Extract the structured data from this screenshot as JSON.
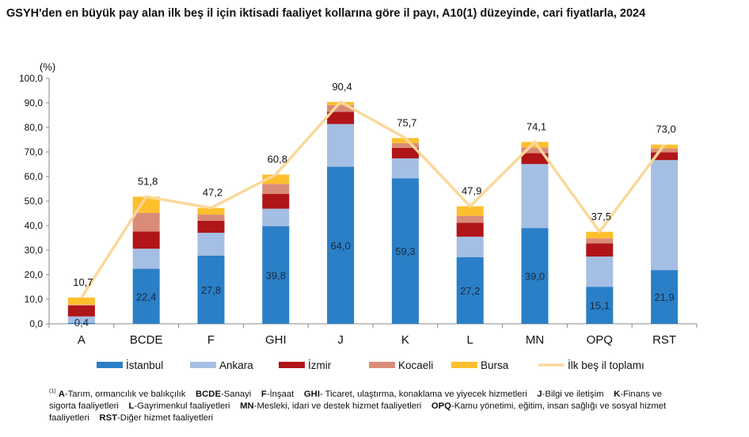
{
  "title": "GSYH'den en büyük pay alan ilk beş il için iktisadi faaliyet kollarına göre il payı, A10(1) düzeyinde, cari fiyatlarla, 2024",
  "chart_data": {
    "type": "bar",
    "stacked": true,
    "ylabel": "(%)",
    "ylim": [
      0,
      100
    ],
    "yticks": [
      "0,0",
      "10,0",
      "20,0",
      "30,0",
      "40,0",
      "50,0",
      "60,0",
      "70,0",
      "80,0",
      "90,0",
      "100,0"
    ],
    "grid": false,
    "legend_position": "bottom",
    "categories": [
      "A",
      "BCDE",
      "F",
      "GHI",
      "J",
      "K",
      "L",
      "MN",
      "OPQ",
      "RST"
    ],
    "series": [
      {
        "name": "İstanbul",
        "color": "#2A7FC6",
        "values": [
          0.4,
          22.4,
          27.8,
          39.8,
          64.0,
          59.3,
          27.2,
          39.0,
          15.1,
          21.9
        ],
        "labels": [
          "0,4",
          "22,4",
          "27,8",
          "39,8",
          "64,0",
          "59,3",
          "27,2",
          "39,0",
          "15,1",
          "21,9"
        ]
      },
      {
        "name": "Ankara",
        "color": "#A5BEE3",
        "values": [
          2.6,
          8.2,
          9.3,
          7.1,
          17.4,
          8.1,
          8.3,
          26.1,
          12.3,
          44.8
        ]
      },
      {
        "name": "İzmir",
        "color": "#B01518",
        "values": [
          4.5,
          7.0,
          4.9,
          6.0,
          5.0,
          4.3,
          5.7,
          4.4,
          5.4,
          3.2
        ]
      },
      {
        "name": "Kocaeli",
        "color": "#D98C78",
        "values": [
          0.3,
          7.6,
          2.5,
          4.1,
          2.7,
          1.9,
          2.8,
          2.3,
          2.0,
          1.6
        ]
      },
      {
        "name": "Bursa",
        "color": "#FDBF2D",
        "values": [
          2.9,
          6.6,
          2.7,
          3.8,
          1.3,
          2.1,
          3.9,
          2.3,
          2.7,
          1.5
        ]
      }
    ],
    "line": {
      "name": "İlk beş il toplamı",
      "color": "#FBD89B",
      "values": [
        10.7,
        51.8,
        47.2,
        60.8,
        90.4,
        75.7,
        47.9,
        74.1,
        37.5,
        73.0
      ],
      "labels": [
        "10,7",
        "51,8",
        "47,2",
        "60,8",
        "90,4",
        "75,7",
        "47,9",
        "74,1",
        "37,5",
        "73,0"
      ]
    }
  },
  "footnote": {
    "marker": "(1)",
    "items": [
      {
        "code": "A",
        "text": "-Tarım, ormancılık ve balıkçılık"
      },
      {
        "code": "BCDE",
        "text": "-Sanayi"
      },
      {
        "code": "F",
        "text": "-İnşaat"
      },
      {
        "code": "GHI",
        "text": "- Ticaret, ulaştırma, konaklama ve yiyecek hizmetleri"
      },
      {
        "code": "J",
        "text": "-Bilgi ve iletişim"
      },
      {
        "code": "K",
        "text": "-Finans ve sigorta faaliyetleri"
      },
      {
        "code": "L",
        "text": "-Gayrimenkul faaliyetleri"
      },
      {
        "code": "MN",
        "text": "-Mesleki, idari ve destek hizmet faaliyetleri"
      },
      {
        "code": "OPQ",
        "text": "-Kamu yönetimi, eğitim, insan sağlığı ve sosyal hizmet faaliyetleri"
      },
      {
        "code": "RST",
        "text": "-Diğer hizmet faaliyetleri"
      }
    ]
  }
}
